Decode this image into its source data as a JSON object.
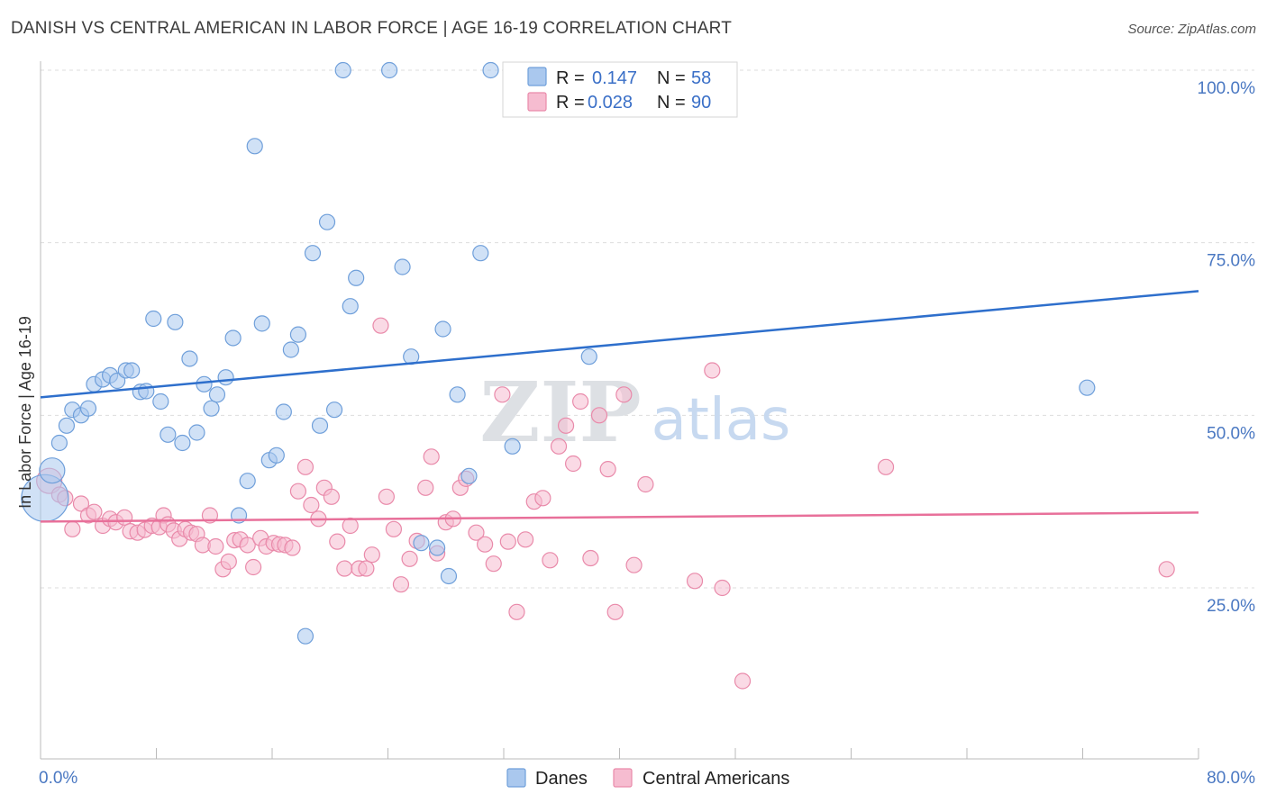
{
  "title": "DANISH VS CENTRAL AMERICAN IN LABOR FORCE | AGE 16-19 CORRELATION CHART",
  "source": "Source: ZipAtlas.com",
  "watermark": {
    "zip": "ZIP",
    "atlas": "atlas"
  },
  "legend_top": {
    "rows": [
      {
        "r_label": "R =",
        "r_value": "0.147",
        "n_label": "N =",
        "n_value": "58"
      },
      {
        "r_label": "R =",
        "r_value": "0.028",
        "n_label": "N =",
        "n_value": "90"
      }
    ]
  },
  "legend_bottom": {
    "items": [
      {
        "label": "Danes"
      },
      {
        "label": "Central Americans"
      }
    ]
  },
  "colors": {
    "blue_fill": "#aac8ee",
    "blue_stroke": "#6f9fda",
    "blue_line": "#2e6fcc",
    "pink_fill": "#f6bcd0",
    "pink_stroke": "#e98aaa",
    "pink_line": "#e8709a",
    "grid": "#dddddd",
    "axis_text": "#4a78c2"
  },
  "chart_data": {
    "type": "scatter",
    "title": "DANISH VS CENTRAL AMERICAN IN LABOR FORCE | AGE 16-19 CORRELATION CHART",
    "xlabel": "",
    "ylabel": "In Labor Force | Age 16-19",
    "xlim": [
      0,
      80
    ],
    "ylim": [
      0,
      104
    ],
    "x_tick_labels": [
      "0.0%",
      "80.0%"
    ],
    "y_ticks": [
      25,
      50,
      75,
      100
    ],
    "y_tick_labels": [
      "25.0%",
      "50.0%",
      "75.0%",
      "100.0%"
    ],
    "grid": true,
    "legend_placement": "top-center",
    "series": [
      {
        "name": "Danes",
        "r": 0.147,
        "n": 58,
        "trend": {
          "x": [
            0,
            80
          ],
          "y": [
            52.6,
            68.0
          ]
        },
        "points": [
          [
            0.3,
            38.0,
            "big"
          ],
          [
            0.8,
            42.0,
            "mid"
          ],
          [
            1.3,
            46.0
          ],
          [
            1.8,
            48.5
          ],
          [
            2.2,
            50.8
          ],
          [
            2.8,
            50.0
          ],
          [
            3.3,
            51.0
          ],
          [
            3.7,
            54.5
          ],
          [
            4.3,
            55.2
          ],
          [
            4.8,
            55.8
          ],
          [
            5.3,
            55.0
          ],
          [
            5.9,
            56.5
          ],
          [
            6.3,
            56.5
          ],
          [
            6.9,
            53.4
          ],
          [
            7.3,
            53.5
          ],
          [
            7.8,
            64.0
          ],
          [
            8.3,
            52.0
          ],
          [
            8.8,
            47.2
          ],
          [
            9.3,
            63.5
          ],
          [
            9.8,
            46.0
          ],
          [
            10.3,
            58.2
          ],
          [
            10.8,
            47.5
          ],
          [
            11.3,
            54.5
          ],
          [
            11.8,
            51.0
          ],
          [
            12.2,
            53.0
          ],
          [
            12.8,
            55.5
          ],
          [
            13.3,
            61.2
          ],
          [
            13.7,
            35.5
          ],
          [
            14.3,
            40.5
          ],
          [
            14.8,
            89.0
          ],
          [
            15.3,
            63.3
          ],
          [
            15.8,
            43.5
          ],
          [
            16.3,
            44.2
          ],
          [
            16.8,
            50.5
          ],
          [
            17.3,
            59.5
          ],
          [
            17.8,
            61.7
          ],
          [
            18.3,
            18.0
          ],
          [
            18.8,
            73.5
          ],
          [
            19.3,
            48.5
          ],
          [
            19.8,
            78.0
          ],
          [
            20.3,
            50.8
          ],
          [
            20.9,
            100.0
          ],
          [
            21.4,
            65.8
          ],
          [
            21.8,
            69.9
          ],
          [
            24.1,
            100.0
          ],
          [
            25.0,
            71.5
          ],
          [
            25.6,
            58.5
          ],
          [
            26.3,
            31.5
          ],
          [
            27.4,
            30.8
          ],
          [
            27.8,
            62.5
          ],
          [
            28.2,
            26.7
          ],
          [
            28.8,
            53.0
          ],
          [
            29.6,
            41.2
          ],
          [
            30.4,
            73.5
          ],
          [
            31.1,
            100.0
          ],
          [
            32.6,
            45.5
          ],
          [
            37.9,
            58.5
          ],
          [
            72.3,
            54.0
          ]
        ]
      },
      {
        "name": "Central Americans",
        "r": 0.028,
        "n": 90,
        "trend": {
          "x": [
            0,
            80
          ],
          "y": [
            34.6,
            35.9
          ]
        },
        "points": [
          [
            0.6,
            40.5,
            "mid"
          ],
          [
            1.3,
            38.5
          ],
          [
            1.7,
            38.0
          ],
          [
            2.2,
            33.5
          ],
          [
            2.8,
            37.2
          ],
          [
            3.3,
            35.5
          ],
          [
            3.7,
            36.0
          ],
          [
            4.3,
            34.0
          ],
          [
            4.8,
            35.0
          ],
          [
            5.2,
            34.5
          ],
          [
            5.8,
            35.2
          ],
          [
            6.2,
            33.2
          ],
          [
            6.7,
            33.0
          ],
          [
            7.2,
            33.4
          ],
          [
            7.7,
            34.0
          ],
          [
            8.2,
            33.8
          ],
          [
            8.5,
            35.5
          ],
          [
            8.8,
            34.2
          ],
          [
            9.2,
            33.3
          ],
          [
            9.6,
            32.1
          ],
          [
            10.0,
            33.5
          ],
          [
            10.4,
            33.0
          ],
          [
            10.8,
            32.8
          ],
          [
            11.2,
            31.2
          ],
          [
            11.7,
            35.5
          ],
          [
            12.1,
            31.0
          ],
          [
            12.6,
            27.7
          ],
          [
            13.0,
            28.8
          ],
          [
            13.4,
            31.9
          ],
          [
            13.8,
            32.0
          ],
          [
            14.3,
            31.2
          ],
          [
            14.7,
            28.0
          ],
          [
            15.2,
            32.2
          ],
          [
            15.6,
            31.0
          ],
          [
            16.1,
            31.5
          ],
          [
            16.5,
            31.3
          ],
          [
            16.9,
            31.2
          ],
          [
            17.4,
            30.8
          ],
          [
            17.8,
            39.0
          ],
          [
            18.3,
            42.5
          ],
          [
            18.7,
            37.0
          ],
          [
            19.2,
            35.0
          ],
          [
            19.6,
            39.5
          ],
          [
            20.1,
            38.2
          ],
          [
            20.5,
            31.7
          ],
          [
            21.0,
            27.8
          ],
          [
            21.4,
            34.0
          ],
          [
            22.0,
            27.8
          ],
          [
            22.5,
            27.8
          ],
          [
            22.9,
            29.8
          ],
          [
            23.5,
            63.0
          ],
          [
            23.9,
            38.2
          ],
          [
            24.4,
            33.5
          ],
          [
            24.9,
            25.5
          ],
          [
            25.5,
            29.2
          ],
          [
            26.0,
            31.8
          ],
          [
            26.6,
            39.5
          ],
          [
            27.0,
            44.0
          ],
          [
            27.4,
            30.0
          ],
          [
            28.0,
            34.5
          ],
          [
            28.5,
            35.0
          ],
          [
            29.0,
            39.5
          ],
          [
            29.4,
            40.8
          ],
          [
            30.1,
            33.0
          ],
          [
            30.7,
            31.3
          ],
          [
            31.3,
            28.5
          ],
          [
            31.9,
            53.0
          ],
          [
            32.3,
            31.7
          ],
          [
            32.9,
            21.5
          ],
          [
            33.5,
            32.0
          ],
          [
            34.1,
            37.5
          ],
          [
            34.7,
            38.0
          ],
          [
            35.2,
            29.0
          ],
          [
            35.8,
            45.5
          ],
          [
            36.3,
            48.5
          ],
          [
            36.8,
            43.0
          ],
          [
            37.3,
            52.0
          ],
          [
            38.0,
            29.3
          ],
          [
            38.6,
            50.0
          ],
          [
            39.2,
            42.2
          ],
          [
            39.7,
            21.5
          ],
          [
            40.3,
            53.0
          ],
          [
            41.0,
            28.3
          ],
          [
            41.8,
            40.0
          ],
          [
            45.2,
            26.0
          ],
          [
            46.4,
            56.5
          ],
          [
            47.1,
            25.0
          ],
          [
            48.5,
            11.5
          ],
          [
            58.4,
            42.5
          ],
          [
            77.8,
            27.7
          ]
        ]
      }
    ]
  }
}
